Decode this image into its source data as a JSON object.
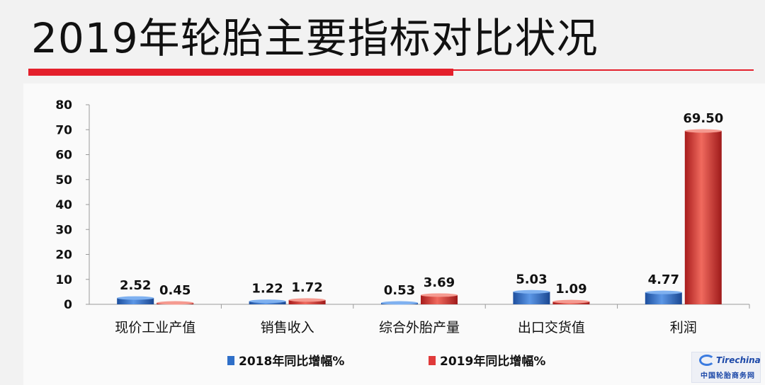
{
  "slide": {
    "title": "2019年轮胎主要指标对比状况"
  },
  "watermark": {
    "logo_text": "Tirechina",
    "subtitle": "中国轮胎商务网"
  },
  "colors": {
    "accent_red": "#e4202c",
    "series_2018": "#2f6fc8",
    "series_2019": "#e03a3a"
  },
  "chart_data": {
    "type": "bar",
    "categories": [
      "现价工业产值",
      "销售收入",
      "综合外胎产量",
      "出口交货值",
      "利润"
    ],
    "series": [
      {
        "name": "2018年同比增幅%",
        "values": [
          2.52,
          1.22,
          0.53,
          5.03,
          4.77
        ],
        "labels": [
          "2.52",
          "1.22",
          "0.53",
          "5.03",
          "4.77"
        ]
      },
      {
        "name": "2019年同比增幅%",
        "values": [
          0.45,
          1.72,
          3.69,
          1.09,
          69.5
        ],
        "labels": [
          "0.45",
          "1.72",
          "3.69",
          "1.09",
          "69.50"
        ]
      }
    ],
    "ylim": [
      0,
      80
    ],
    "yticks": [
      0,
      10,
      20,
      30,
      40,
      50,
      60,
      70,
      80
    ],
    "grid": false,
    "legend": "bottom",
    "style": "3d-cylinder-bars"
  }
}
